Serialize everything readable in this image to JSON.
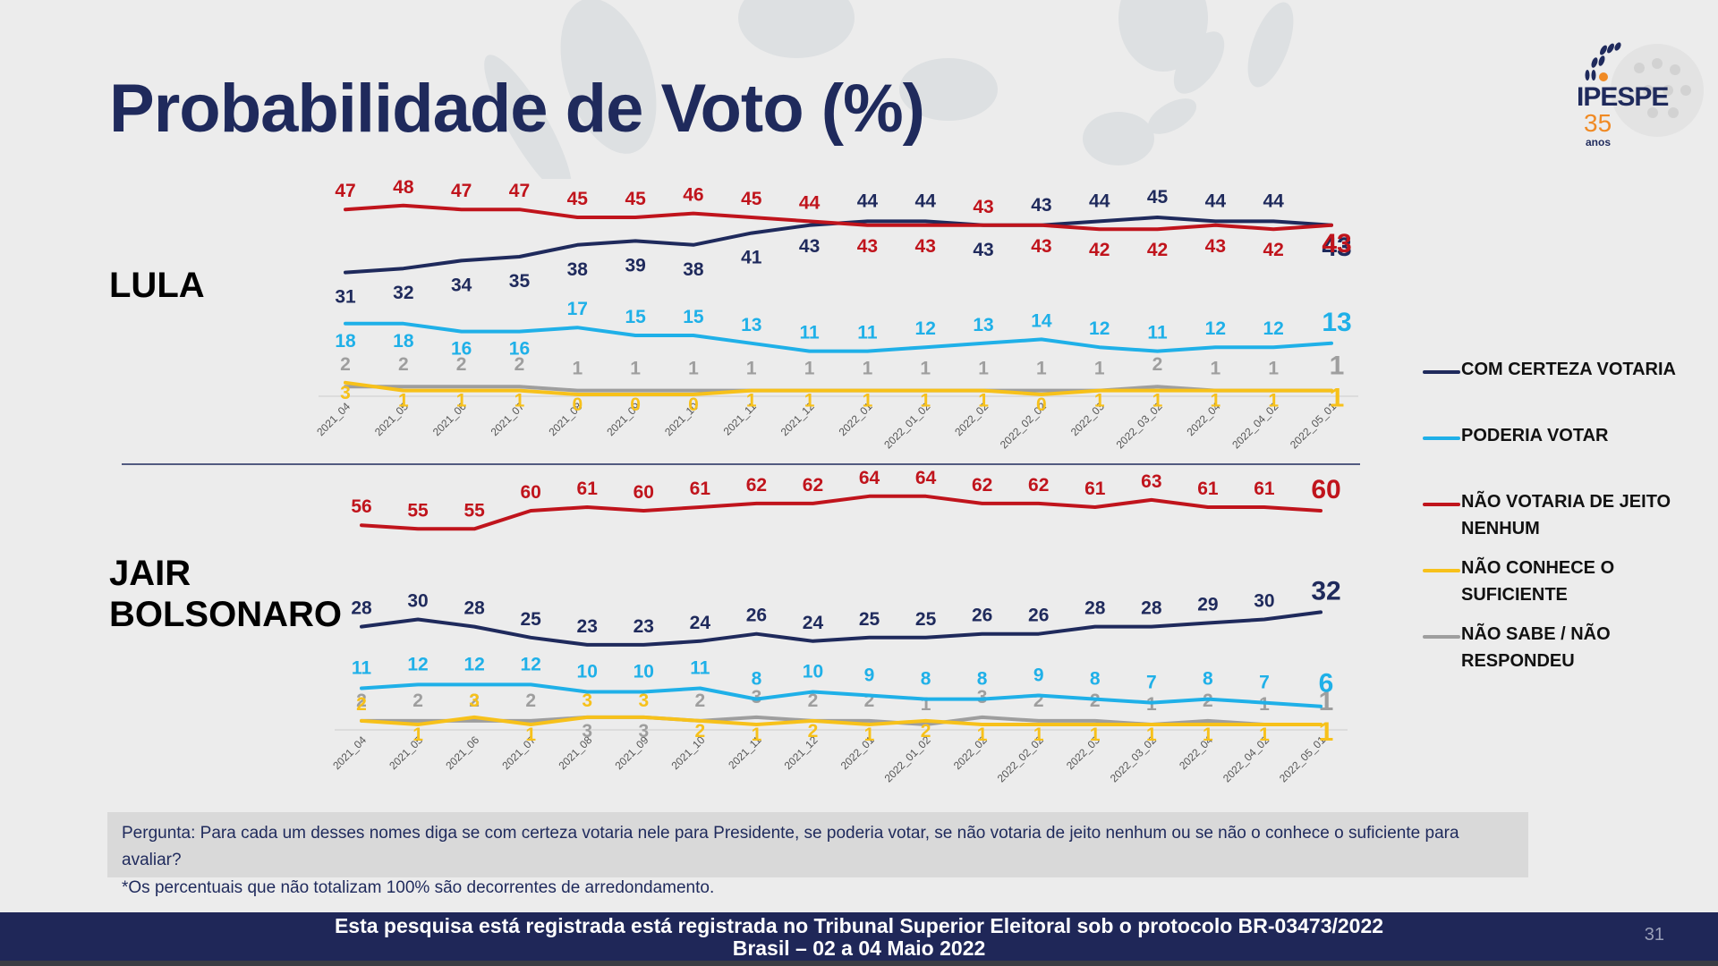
{
  "page": {
    "title": "Probabilidade de Voto (%)",
    "logo": {
      "name": "IPESPE",
      "years": "35",
      "years_label": "anos"
    },
    "question": "Pergunta:  Para cada um desses nomes diga se com certeza votaria nele para Presidente, se poderia votar, se não votaria de jeito nenhum ou se não o conhece o suficiente para avaliar?",
    "note": "*Os percentuais que não totalizam 100% são decorrentes de arredondamento.",
    "footer_line1": "Esta pesquisa está registrada está registrada no Tribunal Superior Eleitoral sob o protocolo BR-03473/2022",
    "footer_line2": "Brasil – 02 a 04 Maio 2022",
    "page_number": "31"
  },
  "colors": {
    "com_certeza": "#1f2a5c",
    "poderia": "#1fb0e8",
    "nao_votaria": "#c0141c",
    "nao_conhece": "#f7c11a",
    "nao_sabe": "#9e9e9e"
  },
  "legend": [
    {
      "key": "com_certeza",
      "label": "COM CERTEZA VOTARIA"
    },
    {
      "key": "poderia",
      "label": "PODERIA VOTAR"
    },
    {
      "key": "nao_votaria",
      "label": "NÃO VOTARIA DE JEITO NENHUM"
    },
    {
      "key": "nao_conhece",
      "label": "NÃO CONHECE O SUFICIENTE"
    },
    {
      "key": "nao_sabe",
      "label": "NÃO SABE / NÃO RESPONDEU"
    }
  ],
  "chart_data": [
    {
      "type": "line",
      "title": "LULA",
      "xlabel": "",
      "ylabel": "%",
      "ylim": [
        0,
        50
      ],
      "grid": false,
      "legend_position": "right",
      "categories": [
        "2021_04",
        "2021_05",
        "2021_06",
        "2021_07",
        "2021_08",
        "2021_09",
        "2021_10",
        "2021_11",
        "2021_12",
        "2022_01",
        "2022_01_02",
        "2022_02",
        "2022_02_02",
        "2022_03",
        "2022_03_02",
        "2022_04",
        "2022_04_02",
        "2022_05_01"
      ],
      "series": [
        {
          "key": "nao_votaria",
          "name": "NÃO VOTARIA DE JEITO NENHUM",
          "values": [
            47,
            48,
            47,
            47,
            45,
            45,
            46,
            45,
            44,
            43,
            43,
            43,
            43,
            42,
            42,
            43,
            42,
            43
          ]
        },
        {
          "key": "com_certeza",
          "name": "COM CERTEZA VOTARIA",
          "values": [
            31,
            32,
            34,
            35,
            38,
            39,
            38,
            41,
            43,
            44,
            44,
            43,
            43,
            44,
            45,
            44,
            44,
            43
          ]
        },
        {
          "key": "poderia",
          "name": "PODERIA VOTAR",
          "values": [
            18,
            18,
            16,
            16,
            17,
            15,
            15,
            13,
            11,
            11,
            12,
            13,
            14,
            12,
            11,
            12,
            12,
            13
          ]
        },
        {
          "key": "nao_sabe",
          "name": "NÃO SABE / NÃO RESPONDEU",
          "values": [
            2,
            2,
            2,
            2,
            1,
            1,
            1,
            1,
            1,
            1,
            1,
            1,
            1,
            1,
            2,
            1,
            1,
            1
          ]
        },
        {
          "key": "nao_conhece",
          "name": "NÃO CONHECE O SUFICIENTE",
          "values": [
            3,
            1,
            1,
            1,
            0,
            0,
            0,
            1,
            1,
            1,
            1,
            1,
            0,
            1,
            1,
            1,
            1,
            1
          ]
        }
      ]
    },
    {
      "type": "line",
      "title": "JAIR BOLSONARO",
      "xlabel": "",
      "ylabel": "%",
      "ylim": [
        0,
        70
      ],
      "grid": false,
      "legend_position": "right",
      "categories": [
        "2021_04",
        "2021_05",
        "2021_06",
        "2021_07",
        "2021_08",
        "2021_09",
        "2021_10",
        "2021_11",
        "2021_12",
        "2022_01",
        "2022_01_02",
        "2022_02",
        "2022_02_02",
        "2022_03",
        "2022_03_02",
        "2022_04",
        "2022_04_02",
        "2022_05_01"
      ],
      "series": [
        {
          "key": "nao_votaria",
          "name": "NÃO VOTARIA DE JEITO NENHUM",
          "values": [
            56,
            55,
            55,
            60,
            61,
            60,
            61,
            62,
            62,
            64,
            64,
            62,
            62,
            61,
            63,
            61,
            61,
            60
          ]
        },
        {
          "key": "com_certeza",
          "name": "COM CERTEZA VOTARIA",
          "values": [
            28,
            30,
            28,
            25,
            23,
            23,
            24,
            26,
            24,
            25,
            25,
            26,
            26,
            28,
            28,
            29,
            30,
            32
          ]
        },
        {
          "key": "poderia",
          "name": "PODERIA VOTAR",
          "values": [
            11,
            12,
            12,
            12,
            10,
            10,
            11,
            8,
            10,
            9,
            8,
            8,
            9,
            8,
            7,
            8,
            7,
            6
          ]
        },
        {
          "key": "nao_sabe",
          "name": "NÃO SABE / NÃO RESPONDEU",
          "values": [
            2,
            2,
            2,
            2,
            3,
            3,
            2,
            3,
            2,
            2,
            1,
            3,
            2,
            2,
            1,
            2,
            1,
            1
          ]
        },
        {
          "key": "nao_conhece",
          "name": "NÃO CONHECE O SUFICIENTE",
          "values": [
            2,
            1,
            3,
            1,
            3,
            3,
            2,
            1,
            2,
            1,
            2,
            1,
            1,
            1,
            1,
            1,
            1,
            1
          ]
        }
      ]
    }
  ]
}
